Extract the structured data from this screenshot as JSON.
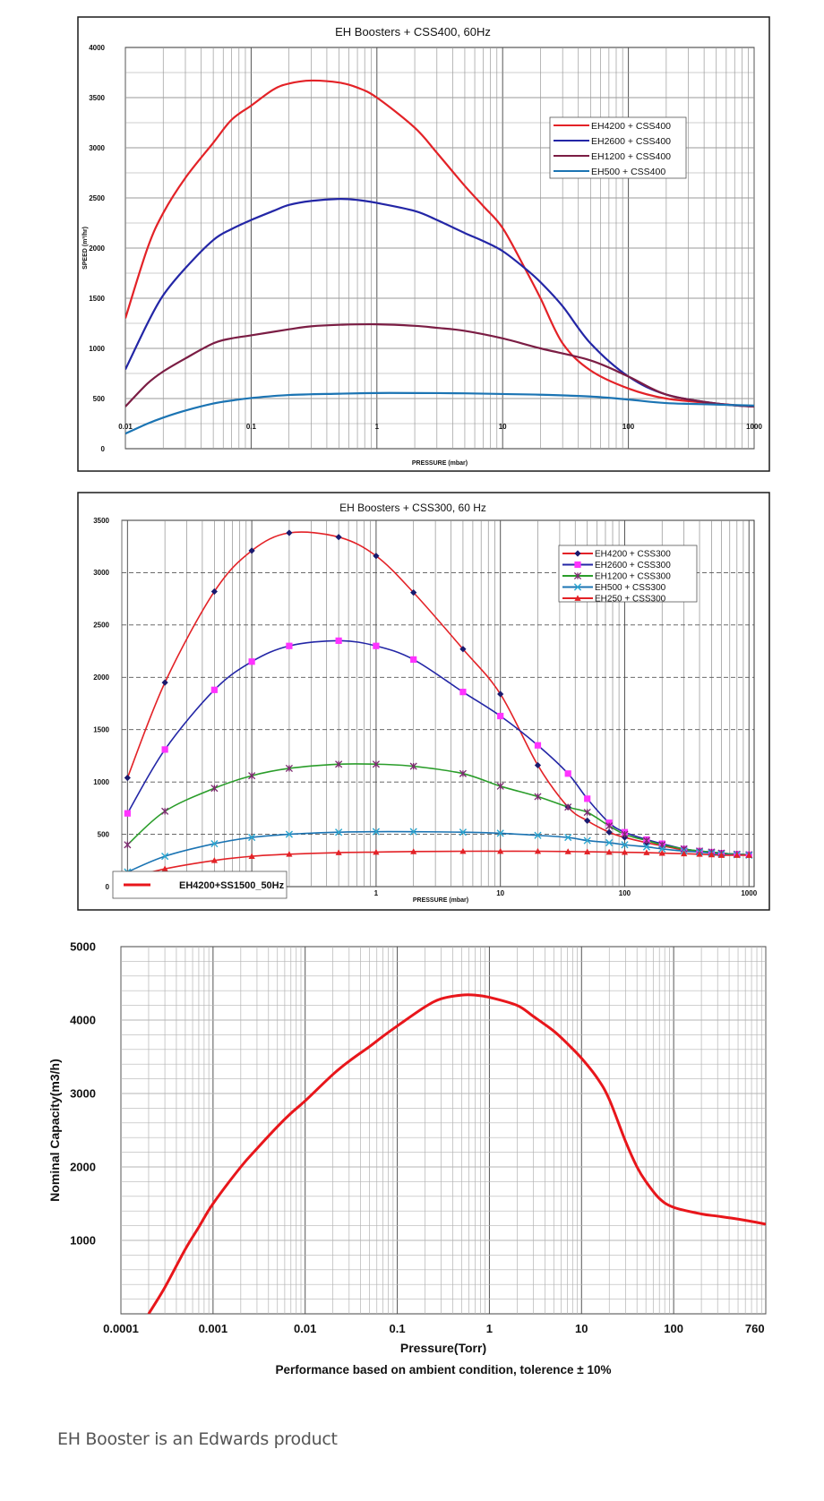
{
  "footer_note": "EH Booster is an Edwards product",
  "chart_data": [
    {
      "type": "line",
      "title": "EH Boosters + CSS400, 60Hz",
      "xlabel": "PRESSURE (mbar)",
      "ylabel": "SPEED (m³/hr)",
      "x_scale": "log",
      "xlim": [
        0.01,
        1000
      ],
      "ylim": [
        0,
        4000
      ],
      "x_tick_labels": [
        "0.01",
        "0.1",
        "1",
        "10",
        "100",
        "1000"
      ],
      "x_tick_values": [
        0.01,
        0.1,
        1,
        10,
        100,
        1000
      ],
      "y_tick_labels": [
        "0",
        "500",
        "1000",
        "1500",
        "2000",
        "2500",
        "3000",
        "3500",
        "4000"
      ],
      "y_tick_values": [
        0,
        500,
        1000,
        1500,
        2000,
        2500,
        3000,
        3500,
        4000
      ],
      "grid": true,
      "legend": "right",
      "series": [
        {
          "name": "EH4200 + CSS400",
          "color": "#e32227",
          "x": [
            0.01,
            0.015,
            0.02,
            0.03,
            0.05,
            0.07,
            0.1,
            0.15,
            0.2,
            0.3,
            0.5,
            0.7,
            1,
            2,
            3,
            5,
            7,
            10,
            15,
            20,
            30,
            50,
            100,
            200,
            500,
            1000
          ],
          "y": [
            1300,
            2000,
            2350,
            2700,
            3050,
            3280,
            3420,
            3580,
            3640,
            3670,
            3650,
            3600,
            3500,
            3200,
            2950,
            2620,
            2420,
            2200,
            1800,
            1500,
            1050,
            780,
            600,
            500,
            450,
            420
          ]
        },
        {
          "name": "EH2600 + CSS400",
          "color": "#2326a6",
          "x": [
            0.01,
            0.015,
            0.02,
            0.03,
            0.05,
            0.07,
            0.1,
            0.15,
            0.2,
            0.3,
            0.5,
            0.7,
            1,
            2,
            3,
            5,
            7,
            10,
            15,
            20,
            30,
            50,
            100,
            200,
            500,
            1000
          ],
          "y": [
            790,
            1250,
            1530,
            1800,
            2080,
            2190,
            2280,
            2370,
            2430,
            2470,
            2490,
            2480,
            2450,
            2370,
            2280,
            2150,
            2070,
            1970,
            1800,
            1660,
            1420,
            1050,
            720,
            540,
            450,
            420
          ]
        },
        {
          "name": "EH1200 + CSS400",
          "color": "#7b1d44",
          "x": [
            0.01,
            0.015,
            0.02,
            0.03,
            0.05,
            0.07,
            0.1,
            0.2,
            0.3,
            0.5,
            1,
            2,
            3,
            5,
            10,
            20,
            50,
            100,
            200,
            500,
            1000
          ],
          "y": [
            420,
            650,
            770,
            900,
            1050,
            1100,
            1130,
            1190,
            1220,
            1235,
            1240,
            1225,
            1205,
            1175,
            1100,
            1000,
            880,
            720,
            540,
            450,
            420
          ]
        },
        {
          "name": "EH500 + CSS400",
          "color": "#1b74b3",
          "x": [
            0.01,
            0.015,
            0.02,
            0.03,
            0.05,
            0.07,
            0.1,
            0.2,
            0.5,
            1,
            2,
            5,
            10,
            20,
            50,
            100,
            200,
            500,
            1000
          ],
          "y": [
            150,
            250,
            310,
            380,
            450,
            480,
            505,
            535,
            548,
            555,
            555,
            552,
            545,
            538,
            520,
            490,
            455,
            440,
            430
          ]
        }
      ]
    },
    {
      "type": "line",
      "title": "EH Boosters + CSS300, 60 Hz",
      "xlabel": "PRESSURE (mbar)",
      "ylabel": "",
      "x_scale": "log",
      "xlim": [
        0.009,
        1100
      ],
      "ylim": [
        0,
        3500
      ],
      "x_tick_labels": [
        "0.01",
        "0.1",
        "1",
        "10",
        "100",
        "1000"
      ],
      "x_tick_values": [
        0.01,
        0.1,
        1,
        10,
        100,
        1000
      ],
      "y_tick_labels": [
        "0",
        "500",
        "1000",
        "1500",
        "2000",
        "2500",
        "3000",
        "3500"
      ],
      "y_tick_values": [
        0,
        500,
        1000,
        1500,
        2000,
        2500,
        3000,
        3500
      ],
      "grid": true,
      "legend": "right",
      "series": [
        {
          "name": "EH4200 + CSS300",
          "color": "#e32227",
          "marker": "diamond",
          "marker_color": "#1a1a6e",
          "x": [
            0.01,
            0.02,
            0.05,
            0.1,
            0.2,
            0.5,
            1,
            2,
            5,
            10,
            20,
            35,
            50,
            75,
            100,
            150,
            200,
            300,
            400,
            500,
            600,
            800,
            1000
          ],
          "y": [
            1040,
            1950,
            2820,
            3210,
            3380,
            3340,
            3160,
            2810,
            2270,
            1840,
            1160,
            760,
            630,
            520,
            470,
            420,
            390,
            350,
            340,
            330,
            320,
            310,
            305
          ]
        },
        {
          "name": "EH2600 + CSS300",
          "color": "#2326a6",
          "marker": "square",
          "marker_color": "#ff33ff",
          "x": [
            0.01,
            0.02,
            0.05,
            0.1,
            0.2,
            0.5,
            1,
            2,
            5,
            10,
            20,
            35,
            50,
            75,
            100,
            150,
            200,
            300,
            400,
            500,
            600,
            800,
            1000
          ],
          "y": [
            700,
            1310,
            1880,
            2150,
            2300,
            2350,
            2300,
            2170,
            1860,
            1630,
            1350,
            1080,
            840,
            610,
            520,
            450,
            410,
            360,
            340,
            330,
            320,
            310,
            305
          ]
        },
        {
          "name": "EH1200 + CSS300",
          "color": "#2a9d2a",
          "marker": "star",
          "marker_color": "#7b2a6e",
          "x": [
            0.01,
            0.02,
            0.05,
            0.1,
            0.2,
            0.5,
            1,
            2,
            5,
            10,
            20,
            35,
            50,
            75,
            100,
            150,
            200,
            300,
            400,
            500,
            600,
            800,
            1000
          ],
          "y": [
            400,
            720,
            940,
            1060,
            1130,
            1170,
            1170,
            1150,
            1080,
            960,
            860,
            760,
            710,
            580,
            500,
            440,
            400,
            360,
            340,
            330,
            320,
            310,
            305
          ]
        },
        {
          "name": "EH500 + CSS300",
          "color": "#1b74b3",
          "marker": "x",
          "marker_color": "#2aa7d1",
          "x": [
            0.01,
            0.02,
            0.05,
            0.1,
            0.2,
            0.5,
            1,
            2,
            5,
            10,
            20,
            35,
            50,
            75,
            100,
            150,
            200,
            300,
            400,
            500,
            600,
            800,
            1000
          ],
          "y": [
            140,
            290,
            410,
            470,
            500,
            520,
            525,
            525,
            520,
            510,
            490,
            470,
            440,
            420,
            400,
            380,
            360,
            340,
            330,
            320,
            310,
            305,
            300
          ]
        },
        {
          "name": "EH250 + CSS300",
          "color": "#e32227",
          "marker": "triangle",
          "marker_color": "#e32227",
          "x": [
            0.01,
            0.02,
            0.05,
            0.1,
            0.2,
            0.5,
            1,
            2,
            5,
            10,
            20,
            35,
            50,
            75,
            100,
            150,
            200,
            300,
            400,
            500,
            600,
            800,
            1000
          ],
          "y": [
            80,
            170,
            250,
            290,
            310,
            325,
            330,
            335,
            338,
            338,
            338,
            335,
            333,
            330,
            328,
            325,
            320,
            315,
            310,
            305,
            300,
            300,
            300
          ]
        }
      ]
    },
    {
      "type": "line",
      "title": "",
      "xlabel": "Pressure(Torr)",
      "ylabel": "Nominal Capacity(m3/h)",
      "caption": "Performance based on ambient condition, tolerence ± 10%",
      "x_scale": "log",
      "xlim": [
        0.0001,
        1000
      ],
      "ylim": [
        0,
        5000
      ],
      "x_tick_labels": [
        "0.0001",
        "0.001",
        "0.01",
        "0.1",
        "1",
        "10",
        "100",
        "760"
      ],
      "x_tick_values": [
        0.0001,
        0.001,
        0.01,
        0.1,
        1,
        10,
        100,
        760
      ],
      "y_tick_labels": [
        "1000",
        "2000",
        "3000",
        "4000",
        "5000"
      ],
      "y_tick_values": [
        1000,
        2000,
        3000,
        4000,
        5000
      ],
      "grid": true,
      "legend": "top-left",
      "series": [
        {
          "name": "EH4200+SS1500_50Hz",
          "color": "#e8161b",
          "x": [
            0.0002,
            0.0003,
            0.0005,
            0.0007,
            0.001,
            0.002,
            0.003,
            0.005,
            0.007,
            0.01,
            0.02,
            0.03,
            0.05,
            0.07,
            0.1,
            0.2,
            0.3,
            0.5,
            0.7,
            1,
            2,
            3,
            5,
            7,
            10,
            15,
            20,
            30,
            40,
            50,
            70,
            100,
            200,
            300,
            500,
            760,
            1000
          ],
          "y": [
            0,
            360,
            880,
            1180,
            1500,
            2000,
            2250,
            2550,
            2730,
            2900,
            3260,
            3440,
            3640,
            3780,
            3920,
            4180,
            4290,
            4340,
            4340,
            4310,
            4200,
            4050,
            3850,
            3680,
            3480,
            3200,
            2920,
            2350,
            2000,
            1800,
            1570,
            1450,
            1360,
            1330,
            1290,
            1250,
            1220
          ]
        }
      ]
    }
  ]
}
